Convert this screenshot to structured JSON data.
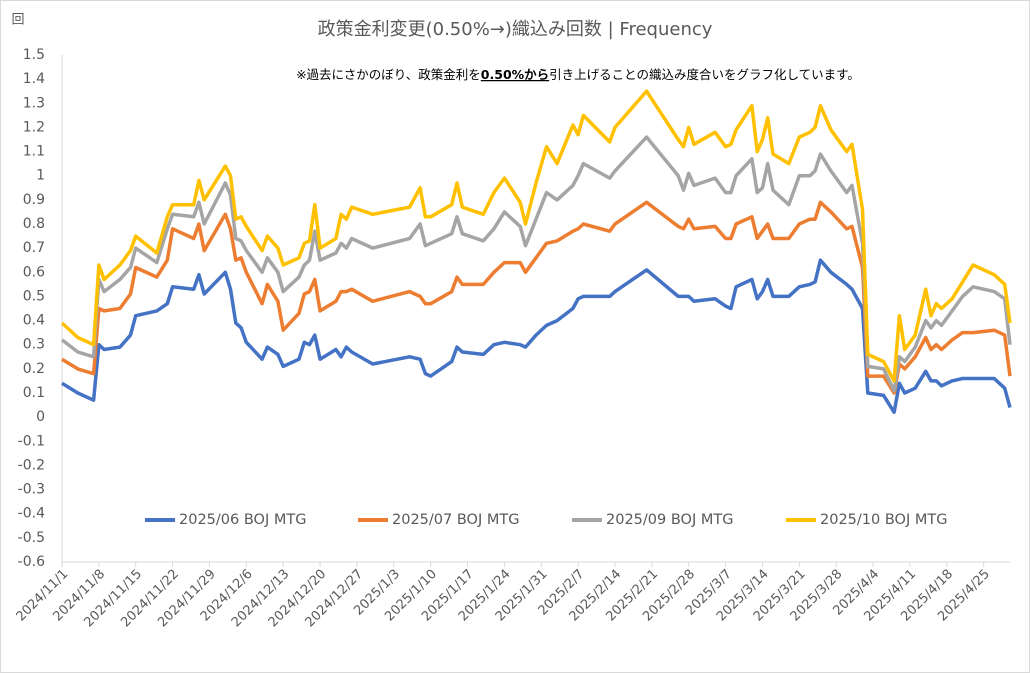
{
  "chart_data": {
    "type": "line",
    "title": "政策金利変更(0.50%→)織込み回数 | Frequency",
    "y_unit": "回",
    "note": [
      "※過去にさかのぼり、政策金利を",
      "0.50%から",
      "引き上げることの織込み度合いをグラフ化しています。"
    ],
    "x": [
      "2024/11/1",
      "2024/11/4",
      "2024/11/7",
      "2024/11/8",
      "2024/11/9",
      "2024/11/12",
      "2024/11/14",
      "2024/11/15",
      "2024/11/19",
      "2024/11/21",
      "2024/11/22",
      "2024/11/26",
      "2024/11/27",
      "2024/11/28",
      "2024/12/2",
      "2024/12/3",
      "2024/12/4",
      "2024/12/5",
      "2024/12/6",
      "2024/12/9",
      "2024/12/10",
      "2024/12/12",
      "2024/12/13",
      "2024/12/16",
      "2024/12/17",
      "2024/12/18",
      "2024/12/19",
      "2024/12/20",
      "2024/12/23",
      "2024/12/24",
      "2024/12/25",
      "2024/12/26",
      "2024/12/30",
      "2025/1/6",
      "2025/1/8",
      "2025/1/9",
      "2025/1/10",
      "2025/1/14",
      "2025/1/15",
      "2025/1/16",
      "2025/1/20",
      "2025/1/22",
      "2025/1/24",
      "2025/1/27",
      "2025/1/28",
      "2025/1/30",
      "2025/2/1",
      "2025/2/3",
      "2025/2/6",
      "2025/2/7",
      "2025/2/8",
      "2025/2/13",
      "2025/2/14",
      "2025/2/20",
      "2025/2/26",
      "2025/2/27",
      "2025/2/28",
      "2025/3/1",
      "2025/3/5",
      "2025/3/7",
      "2025/3/8",
      "2025/3/9",
      "2025/3/12",
      "2025/3/13",
      "2025/3/14",
      "2025/3/15",
      "2025/3/16",
      "2025/3/19",
      "2025/3/21",
      "2025/3/23",
      "2025/3/24",
      "2025/3/25",
      "2025/3/27",
      "2025/3/30",
      "2025/3/31",
      "2025/4/2",
      "2025/4/3",
      "2025/4/6",
      "2025/4/8",
      "2025/4/9",
      "2025/4/10",
      "2025/4/12",
      "2025/4/14",
      "2025/4/15",
      "2025/4/16",
      "2025/4/17",
      "2025/4/19",
      "2025/4/21",
      "2025/4/23",
      "2025/4/27",
      "2025/4/29",
      "2025/4/30"
    ],
    "series": [
      {
        "name": "2025/06 BOJ MTG",
        "color": "#4472c4",
        "values": [
          0.14,
          0.1,
          0.07,
          0.3,
          0.28,
          0.29,
          0.34,
          0.42,
          0.44,
          0.47,
          0.54,
          0.53,
          0.59,
          0.51,
          0.6,
          0.53,
          0.39,
          0.37,
          0.31,
          0.24,
          0.29,
          0.26,
          0.21,
          0.24,
          0.31,
          0.3,
          0.34,
          0.24,
          0.28,
          0.25,
          0.29,
          0.27,
          0.22,
          0.25,
          0.24,
          0.18,
          0.17,
          0.23,
          0.29,
          0.27,
          0.26,
          0.3,
          0.31,
          0.3,
          0.29,
          0.34,
          0.38,
          0.4,
          0.45,
          0.49,
          0.5,
          0.5,
          0.52,
          0.61,
          0.5,
          0.5,
          0.5,
          0.48,
          0.49,
          0.46,
          0.45,
          0.54,
          0.57,
          0.49,
          0.52,
          0.57,
          0.5,
          0.5,
          0.54,
          0.55,
          0.56,
          0.65,
          0.6,
          0.55,
          0.53,
          0.45,
          0.1,
          0.09,
          0.02,
          0.14,
          0.1,
          0.12,
          0.19,
          0.15,
          0.15,
          0.13,
          0.15,
          0.16,
          0.16,
          0.16,
          0.12,
          0.04
        ]
      },
      {
        "name": "2025/07 BOJ MTG",
        "color": "#ed7d31",
        "values": [
          0.24,
          0.2,
          0.18,
          0.45,
          0.44,
          0.45,
          0.51,
          0.62,
          0.58,
          0.65,
          0.78,
          0.74,
          0.8,
          0.69,
          0.84,
          0.78,
          0.65,
          0.66,
          0.6,
          0.47,
          0.55,
          0.48,
          0.36,
          0.43,
          0.51,
          0.52,
          0.57,
          0.44,
          0.48,
          0.52,
          0.52,
          0.53,
          0.48,
          0.52,
          0.5,
          0.47,
          0.47,
          0.52,
          0.58,
          0.55,
          0.55,
          0.6,
          0.64,
          0.64,
          0.6,
          0.66,
          0.72,
          0.73,
          0.77,
          0.78,
          0.8,
          0.77,
          0.8,
          0.89,
          0.79,
          0.78,
          0.82,
          0.78,
          0.79,
          0.74,
          0.74,
          0.8,
          0.83,
          0.74,
          0.77,
          0.8,
          0.74,
          0.74,
          0.8,
          0.82,
          0.82,
          0.89,
          0.85,
          0.78,
          0.79,
          0.62,
          0.17,
          0.17,
          0.1,
          0.22,
          0.2,
          0.25,
          0.33,
          0.28,
          0.3,
          0.28,
          0.32,
          0.35,
          0.35,
          0.36,
          0.34,
          0.17
        ]
      },
      {
        "name": "2025/09 BOJ MTG",
        "color": "#a5a5a5",
        "values": [
          0.32,
          0.27,
          0.25,
          0.57,
          0.52,
          0.57,
          0.62,
          0.7,
          0.64,
          0.78,
          0.84,
          0.83,
          0.89,
          0.8,
          0.97,
          0.92,
          0.74,
          0.73,
          0.69,
          0.6,
          0.66,
          0.6,
          0.52,
          0.58,
          0.63,
          0.65,
          0.77,
          0.65,
          0.68,
          0.72,
          0.7,
          0.74,
          0.7,
          0.74,
          0.8,
          0.71,
          0.72,
          0.76,
          0.83,
          0.76,
          0.73,
          0.78,
          0.85,
          0.79,
          0.71,
          0.82,
          0.93,
          0.9,
          0.96,
          1.0,
          1.05,
          0.99,
          1.02,
          1.16,
          1.0,
          0.94,
          1.01,
          0.96,
          0.99,
          0.93,
          0.93,
          1.0,
          1.07,
          0.93,
          0.95,
          1.05,
          0.94,
          0.88,
          1.0,
          1.0,
          1.02,
          1.09,
          1.02,
          0.93,
          0.96,
          0.72,
          0.21,
          0.2,
          0.11,
          0.25,
          0.23,
          0.29,
          0.4,
          0.37,
          0.4,
          0.38,
          0.44,
          0.5,
          0.54,
          0.52,
          0.49,
          0.3
        ]
      },
      {
        "name": "2025/10 BOJ MTG",
        "color": "#ffc000",
        "values": [
          0.39,
          0.33,
          0.3,
          0.63,
          0.57,
          0.63,
          0.69,
          0.75,
          0.68,
          0.83,
          0.88,
          0.88,
          0.98,
          0.9,
          1.04,
          1.0,
          0.82,
          0.83,
          0.79,
          0.69,
          0.75,
          0.7,
          0.63,
          0.66,
          0.72,
          0.73,
          0.88,
          0.7,
          0.74,
          0.84,
          0.82,
          0.87,
          0.84,
          0.87,
          0.95,
          0.83,
          0.83,
          0.88,
          0.97,
          0.87,
          0.84,
          0.93,
          0.99,
          0.89,
          0.8,
          0.97,
          1.12,
          1.05,
          1.21,
          1.17,
          1.25,
          1.14,
          1.2,
          1.35,
          1.15,
          1.12,
          1.2,
          1.13,
          1.18,
          1.12,
          1.13,
          1.19,
          1.29,
          1.1,
          1.15,
          1.24,
          1.09,
          1.05,
          1.16,
          1.18,
          1.2,
          1.29,
          1.19,
          1.1,
          1.13,
          0.86,
          0.26,
          0.23,
          0.15,
          0.42,
          0.28,
          0.34,
          0.53,
          0.42,
          0.47,
          0.45,
          0.49,
          0.56,
          0.63,
          0.59,
          0.55,
          0.39
        ]
      }
    ],
    "xlim": [
      "2024/11/1",
      "2025/4/30"
    ],
    "xticks": [
      "2024/11/1",
      "2024/11/8",
      "2024/11/15",
      "2024/11/22",
      "2024/11/29",
      "2024/12/6",
      "2024/12/13",
      "2024/12/20",
      "2024/12/27",
      "2025/1/3",
      "2025/1/10",
      "2025/1/17",
      "2025/1/24",
      "2025/1/31",
      "2025/2/7",
      "2025/2/14",
      "2025/2/21",
      "2025/2/28",
      "2025/3/7",
      "2025/3/14",
      "2025/3/21",
      "2025/3/28",
      "2025/4/4",
      "2025/4/11",
      "2025/4/18",
      "2025/4/25"
    ],
    "ylim": [
      -0.6,
      1.5
    ],
    "yticks": [
      -0.6,
      -0.5,
      -0.4,
      -0.3,
      -0.2,
      -0.1,
      0,
      0.1,
      0.2,
      0.3,
      0.4,
      0.5,
      0.6,
      0.7,
      0.8,
      0.9,
      1,
      1.1,
      1.2,
      1.3,
      1.4,
      1.5
    ],
    "grid": false,
    "legend": "bottom"
  }
}
